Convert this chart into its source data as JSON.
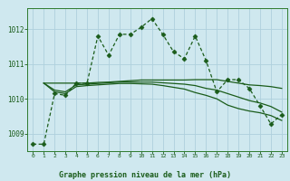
{
  "title": "Graphe pression niveau de la mer (hPa)",
  "bg_color": "#cfe8ef",
  "plot_bg_color": "#cfe8ef",
  "grid_color": "#aed0dc",
  "line_color": "#1a5c1a",
  "border_color": "#2d7a2d",
  "xlim": [
    -0.5,
    23.5
  ],
  "ylim": [
    1008.5,
    1012.6
  ],
  "yticks": [
    1009,
    1010,
    1011,
    1012
  ],
  "xticks": [
    0,
    1,
    2,
    3,
    4,
    5,
    6,
    7,
    8,
    9,
    10,
    11,
    12,
    13,
    14,
    15,
    16,
    17,
    18,
    19,
    20,
    21,
    22,
    23
  ],
  "series_main": {
    "x": [
      0,
      1,
      2,
      3,
      4,
      5,
      6,
      7,
      8,
      9,
      10,
      11,
      12,
      13,
      14,
      15,
      16,
      17,
      18,
      19,
      20,
      21,
      22,
      23
    ],
    "y": [
      1008.7,
      1008.7,
      1010.15,
      1010.1,
      1010.45,
      1010.45,
      1011.8,
      1011.25,
      1011.85,
      1011.85,
      1012.05,
      1012.3,
      1011.85,
      1011.35,
      1011.15,
      1011.8,
      1011.1,
      1010.2,
      1010.55,
      1010.55,
      1010.3,
      1009.8,
      1009.28,
      1009.55
    ]
  },
  "series_line1": {
    "x": [
      1,
      2,
      3,
      4,
      5,
      6,
      7,
      8,
      9,
      10,
      11,
      12,
      13,
      14,
      15,
      16,
      17,
      18,
      19,
      20,
      21,
      22,
      23
    ],
    "y": [
      1010.45,
      1010.45,
      1010.45,
      1010.45,
      1010.45,
      1010.47,
      1010.48,
      1010.5,
      1010.52,
      1010.54,
      1010.54,
      1010.54,
      1010.54,
      1010.54,
      1010.55,
      1010.55,
      1010.55,
      1010.5,
      1010.45,
      1010.4,
      1010.38,
      1010.35,
      1010.3
    ]
  },
  "series_line2": {
    "x": [
      1,
      2,
      3,
      4,
      5,
      6,
      7,
      8,
      9,
      10,
      11,
      12,
      13,
      14,
      15,
      16,
      17,
      18,
      19,
      20,
      21,
      22,
      23
    ],
    "y": [
      1010.45,
      1010.25,
      1010.2,
      1010.4,
      1010.42,
      1010.44,
      1010.46,
      1010.48,
      1010.48,
      1010.48,
      1010.48,
      1010.46,
      1010.44,
      1010.42,
      1010.38,
      1010.3,
      1010.25,
      1010.15,
      1010.05,
      1009.95,
      1009.88,
      1009.78,
      1009.62
    ]
  },
  "series_line3": {
    "x": [
      1,
      2,
      3,
      4,
      5,
      6,
      7,
      8,
      9,
      10,
      11,
      12,
      13,
      14,
      15,
      16,
      17,
      18,
      19,
      20,
      21,
      22,
      23
    ],
    "y": [
      1010.45,
      1010.2,
      1010.15,
      1010.35,
      1010.38,
      1010.4,
      1010.42,
      1010.44,
      1010.44,
      1010.43,
      1010.42,
      1010.38,
      1010.33,
      1010.28,
      1010.18,
      1010.1,
      1010.0,
      1009.82,
      1009.72,
      1009.65,
      1009.6,
      1009.52,
      1009.38
    ]
  }
}
